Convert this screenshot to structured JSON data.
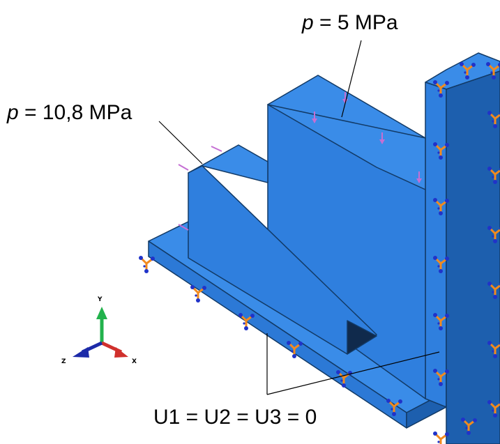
{
  "labels": {
    "load_top": {
      "var": "p",
      "rest": " = 5 MPa"
    },
    "load_left": {
      "var": "p",
      "rest": " = 10,8 MPa"
    },
    "boundary": "U1 = U2 = U3 = 0"
  },
  "triad": {
    "y": "Y",
    "x": "X",
    "z": "Z"
  },
  "colors": {
    "body_front": "#2f7fde",
    "body_top": "#3a8ce8",
    "body_dark": "#1d5fae",
    "edge": "#123a66",
    "load_arrow": "#c56fd3",
    "bc_orange": "#f28a1e",
    "bc_blue": "#2033c9",
    "axis_y": "#22b24c",
    "axis_x": "#d0302c",
    "axis_z": "#1c2aa8"
  },
  "icons": {
    "support": "fixed-support-triad-icon",
    "load": "pressure-arrow-icon"
  }
}
